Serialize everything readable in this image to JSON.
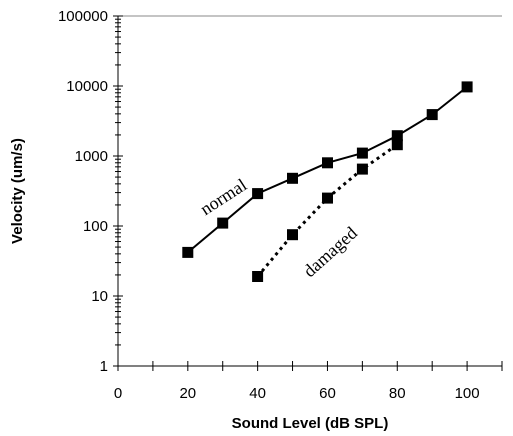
{
  "chart_data": {
    "type": "line",
    "xlabel": "Sound Level (dB SPL)",
    "ylabel": "Velocity (um/s)",
    "xlim": [
      0,
      110
    ],
    "ylim": [
      1,
      100000
    ],
    "y_scale": "log",
    "x_ticks": [
      "0",
      "20",
      "40",
      "60",
      "80",
      "100"
    ],
    "y_ticks": [
      "1",
      "10",
      "100",
      "1000",
      "10000",
      "100000"
    ],
    "grid": false,
    "series": [
      {
        "name": "normal",
        "line_style": "solid",
        "marker": "filled-square",
        "color": "#000000",
        "x": [
          20,
          30,
          40,
          50,
          60,
          70,
          80,
          90,
          100
        ],
        "y": [
          42,
          110,
          290,
          480,
          800,
          1100,
          1950,
          3900,
          9700
        ]
      },
      {
        "name": "damaged",
        "line_style": "dotted",
        "marker": "filled-square",
        "color": "#000000",
        "x": [
          40,
          50,
          60,
          70,
          80
        ],
        "y": [
          19,
          75,
          250,
          650,
          1450
        ]
      }
    ]
  }
}
